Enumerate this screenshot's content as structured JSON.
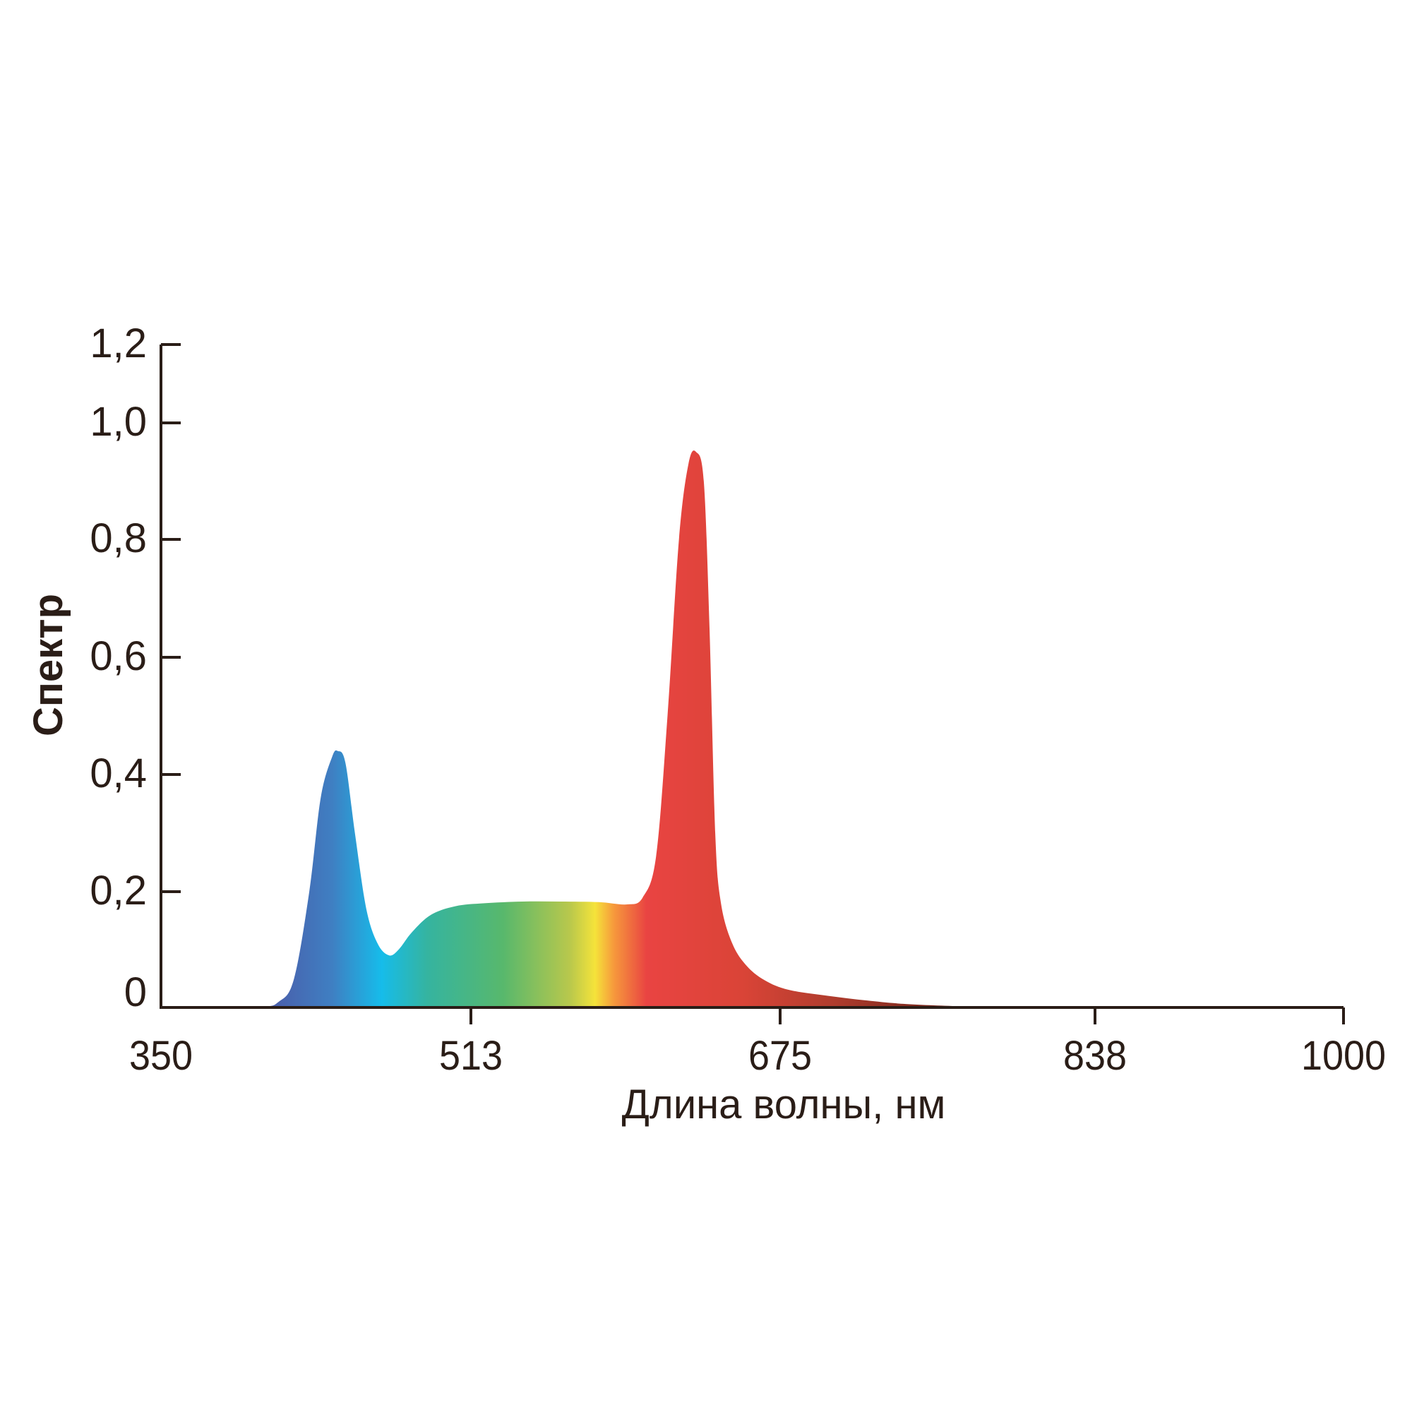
{
  "chart_data": {
    "type": "area",
    "title": "",
    "xlabel": "Длина волны, нм",
    "ylabel": "Спектр",
    "x_ticks": [
      350,
      513,
      675,
      838,
      1000
    ],
    "x_tick_labels": [
      "350",
      "513",
      "675",
      "838",
      "1000"
    ],
    "y_ticks": [
      0,
      0.2,
      0.4,
      0.6,
      0.8,
      1.0,
      1.2
    ],
    "y_tick_labels": [
      "0",
      "0,2",
      "0,4",
      "0,6",
      "0,8",
      "1,0",
      "1,2"
    ],
    "xlim": [
      350,
      1000
    ],
    "ylim": [
      0,
      1.2
    ],
    "grid": false,
    "fill": "spectral gradient",
    "axis_color": "#2a1d17",
    "x": [
      350,
      400,
      412,
      420,
      428,
      434,
      440,
      443,
      447,
      452,
      458,
      464,
      470,
      475,
      482,
      492,
      505,
      520,
      540,
      560,
      580,
      595,
      603,
      610,
      616,
      622,
      627,
      631,
      635,
      638,
      641,
      644,
      650,
      658,
      668,
      680,
      700,
      720,
      740,
      770,
      800,
      1000
    ],
    "y": [
      0,
      0.001,
      0.01,
      0.05,
      0.2,
      0.36,
      0.43,
      0.44,
      0.42,
      0.3,
      0.17,
      0.11,
      0.09,
      0.1,
      0.13,
      0.16,
      0.175,
      0.18,
      0.183,
      0.183,
      0.182,
      0.178,
      0.19,
      0.26,
      0.5,
      0.8,
      0.93,
      0.95,
      0.9,
      0.65,
      0.3,
      0.18,
      0.11,
      0.07,
      0.045,
      0.03,
      0.02,
      0.012,
      0.006,
      0.002,
      0.001,
      0
    ],
    "gradient_stops": [
      {
        "nm": 405,
        "color": "#4b5aa8"
      },
      {
        "nm": 440,
        "color": "#3f7fc2"
      },
      {
        "nm": 466,
        "color": "#16bcea"
      },
      {
        "nm": 490,
        "color": "#35b4a0"
      },
      {
        "nm": 530,
        "color": "#58b86c"
      },
      {
        "nm": 565,
        "color": "#b9c84c"
      },
      {
        "nm": 578,
        "color": "#f5e33a"
      },
      {
        "nm": 588,
        "color": "#f6983c"
      },
      {
        "nm": 605,
        "color": "#e94442"
      },
      {
        "nm": 655,
        "color": "#da4437"
      },
      {
        "nm": 700,
        "color": "#b23d2e"
      },
      {
        "nm": 780,
        "color": "#5e1c12"
      },
      {
        "nm": 1000,
        "color": "#3a120c"
      }
    ]
  }
}
